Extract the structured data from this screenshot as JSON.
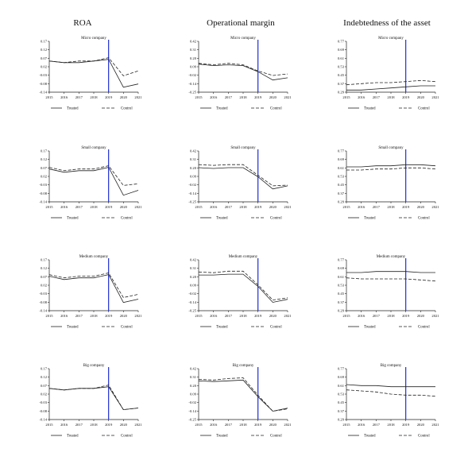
{
  "column_titles": [
    "ROA",
    "Operational margin",
    "Indebtedness of the asset"
  ],
  "chart_data": [
    {
      "type": "line",
      "title": "Micro company",
      "x": [
        2015,
        2016,
        2017,
        2018,
        2019,
        2020,
        2021
      ],
      "yticks": [
        "0.17",
        "0.12",
        "0.07",
        "0.02",
        "-0.03",
        "-0.08",
        "-0.14"
      ],
      "ylim": [
        -0.14,
        0.17
      ],
      "vline": 2019,
      "series": [
        {
          "name": "Treated",
          "style": "solid",
          "values": [
            0.05,
            0.04,
            0.04,
            0.05,
            0.06,
            -0.11,
            -0.09
          ]
        },
        {
          "name": "Control",
          "style": "dashed",
          "values": [
            0.05,
            0.04,
            0.05,
            0.05,
            0.07,
            -0.04,
            -0.01
          ]
        }
      ]
    },
    {
      "type": "line",
      "title": "Micro company",
      "x": [
        2015,
        2016,
        2017,
        2018,
        2019,
        2020,
        2021
      ],
      "yticks": [
        "0.42",
        "0.31",
        "0.20",
        "0.09",
        "-0.02",
        "-0.14",
        "-0.25"
      ],
      "ylim": [
        -0.25,
        0.42
      ],
      "vline": 2019,
      "series": [
        {
          "name": "Treated",
          "style": "solid",
          "values": [
            0.12,
            0.1,
            0.11,
            0.1,
            0.02,
            -0.09,
            -0.06
          ]
        },
        {
          "name": "Control",
          "style": "dashed",
          "values": [
            0.13,
            0.11,
            0.13,
            0.11,
            0.03,
            -0.03,
            -0.01
          ]
        }
      ]
    },
    {
      "type": "line",
      "title": "Micro company",
      "x": [
        2015,
        2016,
        2017,
        2018,
        2019,
        2020,
        2021
      ],
      "yticks": [
        "0.77",
        "0.69",
        "0.61",
        "0.53",
        "0.45",
        "0.37",
        "0.29"
      ],
      "ylim": [
        0.29,
        0.77
      ],
      "vline": 2019,
      "series": [
        {
          "name": "Treated",
          "style": "solid",
          "values": [
            0.31,
            0.31,
            0.32,
            0.33,
            0.34,
            0.35,
            0.35
          ]
        },
        {
          "name": "Control",
          "style": "dashed",
          "values": [
            0.36,
            0.37,
            0.38,
            0.38,
            0.39,
            0.4,
            0.39
          ]
        }
      ]
    },
    {
      "type": "line",
      "title": "Small company",
      "x": [
        2015,
        2016,
        2017,
        2018,
        2019,
        2020,
        2021
      ],
      "yticks": [
        "0.17",
        "0.12",
        "0.07",
        "0.02",
        "-0.03",
        "-0.08",
        "-0.14"
      ],
      "ylim": [
        -0.14,
        0.17
      ],
      "vline": 2019,
      "series": [
        {
          "name": "Treated",
          "style": "solid",
          "values": [
            0.06,
            0.04,
            0.05,
            0.05,
            0.07,
            -0.1,
            -0.07
          ]
        },
        {
          "name": "Control",
          "style": "dashed",
          "values": [
            0.07,
            0.05,
            0.06,
            0.06,
            0.08,
            -0.04,
            -0.03
          ]
        }
      ]
    },
    {
      "type": "line",
      "title": "Small company",
      "x": [
        2015,
        2016,
        2017,
        2018,
        2019,
        2020,
        2021
      ],
      "yticks": [
        "0.42",
        "0.31",
        "0.20",
        "0.09",
        "-0.02",
        "-0.14",
        "-0.25"
      ],
      "ylim": [
        -0.25,
        0.42
      ],
      "vline": 2019,
      "series": [
        {
          "name": "Treated",
          "style": "solid",
          "values": [
            0.2,
            0.19,
            0.2,
            0.2,
            0.08,
            -0.08,
            -0.04
          ]
        },
        {
          "name": "Control",
          "style": "dashed",
          "values": [
            0.24,
            0.23,
            0.24,
            0.24,
            0.1,
            -0.04,
            -0.03
          ]
        }
      ]
    },
    {
      "type": "line",
      "title": "Small company",
      "x": [
        2015,
        2016,
        2017,
        2018,
        2019,
        2020,
        2021
      ],
      "yticks": [
        "0.77",
        "0.69",
        "0.61",
        "0.53",
        "0.45",
        "0.37",
        "0.29"
      ],
      "ylim": [
        0.29,
        0.77
      ],
      "vline": 2019,
      "series": [
        {
          "name": "Treated",
          "style": "solid",
          "values": [
            0.62,
            0.62,
            0.63,
            0.63,
            0.64,
            0.64,
            0.63
          ]
        },
        {
          "name": "Control",
          "style": "dashed",
          "values": [
            0.59,
            0.59,
            0.6,
            0.6,
            0.61,
            0.61,
            0.6
          ]
        }
      ]
    },
    {
      "type": "line",
      "title": "Medium company",
      "x": [
        2015,
        2016,
        2017,
        2018,
        2019,
        2020,
        2021
      ],
      "yticks": [
        "0.17",
        "0.12",
        "0.07",
        "0.02",
        "-0.03",
        "-0.08",
        "-0.14"
      ],
      "ylim": [
        -0.14,
        0.17
      ],
      "vline": 2019,
      "series": [
        {
          "name": "Treated",
          "style": "solid",
          "values": [
            0.07,
            0.05,
            0.06,
            0.06,
            0.08,
            -0.09,
            -0.07
          ]
        },
        {
          "name": "Control",
          "style": "dashed",
          "values": [
            0.08,
            0.06,
            0.07,
            0.07,
            0.09,
            -0.06,
            -0.04
          ]
        }
      ]
    },
    {
      "type": "line",
      "title": "Medium company",
      "x": [
        2015,
        2016,
        2017,
        2018,
        2019,
        2020,
        2021
      ],
      "yticks": [
        "0.42",
        "0.31",
        "0.20",
        "0.09",
        "-0.02",
        "-0.14",
        "-0.25"
      ],
      "ylim": [
        -0.25,
        0.42
      ],
      "vline": 2019,
      "series": [
        {
          "name": "Treated",
          "style": "solid",
          "values": [
            0.22,
            0.22,
            0.23,
            0.23,
            0.07,
            -0.14,
            -0.1
          ]
        },
        {
          "name": "Control",
          "style": "dashed",
          "values": [
            0.26,
            0.25,
            0.27,
            0.27,
            0.09,
            -0.11,
            -0.08
          ]
        }
      ]
    },
    {
      "type": "line",
      "title": "Medium company",
      "x": [
        2015,
        2016,
        2017,
        2018,
        2019,
        2020,
        2021
      ],
      "yticks": [
        "0.77",
        "0.69",
        "0.61",
        "0.53",
        "0.45",
        "0.37",
        "0.29"
      ],
      "ylim": [
        0.29,
        0.77
      ],
      "vline": 2019,
      "series": [
        {
          "name": "Treated",
          "style": "solid",
          "values": [
            0.65,
            0.65,
            0.66,
            0.66,
            0.66,
            0.65,
            0.65
          ]
        },
        {
          "name": "Control",
          "style": "dashed",
          "values": [
            0.6,
            0.59,
            0.59,
            0.59,
            0.59,
            0.58,
            0.57
          ]
        }
      ]
    },
    {
      "type": "line",
      "title": "Big company",
      "x": [
        2015,
        2016,
        2017,
        2018,
        2019,
        2020,
        2021
      ],
      "yticks": [
        "0.17",
        "0.12",
        "0.07",
        "0.02",
        "-0.03",
        "-0.08",
        "-0.14"
      ],
      "ylim": [
        -0.14,
        0.17
      ],
      "vline": 2019,
      "series": [
        {
          "name": "Treated",
          "style": "solid",
          "values": [
            0.05,
            0.04,
            0.05,
            0.05,
            0.06,
            -0.08,
            -0.07
          ]
        },
        {
          "name": "Control",
          "style": "dashed",
          "values": [
            0.05,
            0.04,
            0.05,
            0.05,
            0.07,
            -0.08,
            -0.07
          ]
        }
      ]
    },
    {
      "type": "line",
      "title": "Big company",
      "x": [
        2015,
        2016,
        2017,
        2018,
        2019,
        2020,
        2021
      ],
      "yticks": [
        "0.42",
        "0.31",
        "0.20",
        "0.09",
        "-0.02",
        "-0.14",
        "-0.25"
      ],
      "ylim": [
        -0.25,
        0.42
      ],
      "vline": 2019,
      "series": [
        {
          "name": "Treated",
          "style": "solid",
          "values": [
            0.26,
            0.25,
            0.26,
            0.27,
            0.05,
            -0.14,
            -0.1
          ]
        },
        {
          "name": "Control",
          "style": "dashed",
          "values": [
            0.28,
            0.27,
            0.29,
            0.3,
            0.07,
            -0.14,
            -0.11
          ]
        }
      ]
    },
    {
      "type": "line",
      "title": "Big company",
      "x": [
        2015,
        2016,
        2017,
        2018,
        2019,
        2020,
        2021
      ],
      "yticks": [
        "0.77",
        "0.69",
        "0.61",
        "0.53",
        "0.45",
        "0.37",
        "0.29"
      ],
      "ylim": [
        0.29,
        0.77
      ],
      "vline": 2019,
      "series": [
        {
          "name": "Treated",
          "style": "solid",
          "values": [
            0.62,
            0.61,
            0.61,
            0.6,
            0.6,
            0.6,
            0.6
          ]
        },
        {
          "name": "Control",
          "style": "dashed",
          "values": [
            0.57,
            0.56,
            0.55,
            0.53,
            0.52,
            0.52,
            0.51
          ]
        }
      ]
    }
  ],
  "colors": {
    "line": "#222222",
    "vline": "#1f2fd0",
    "axis": "#222222"
  }
}
